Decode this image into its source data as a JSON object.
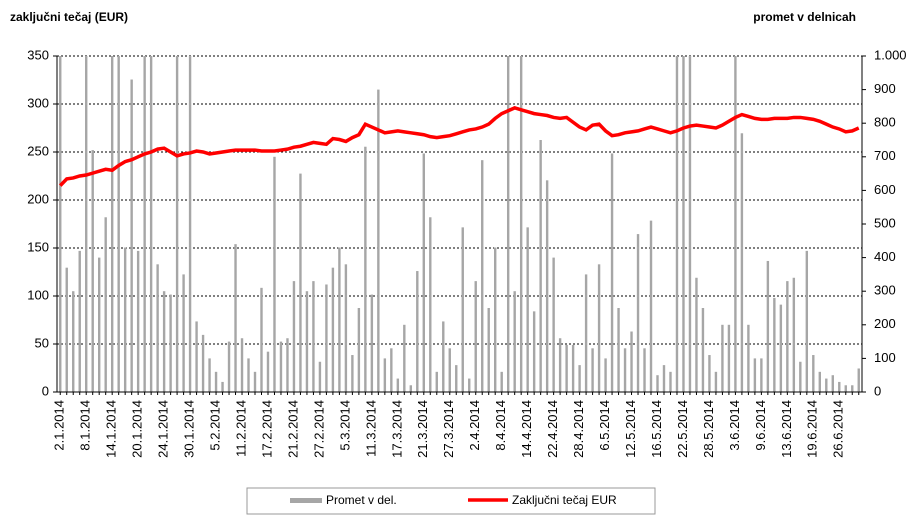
{
  "chart_data": {
    "type": "bar_line",
    "y_label": "zaključni tečaj (EUR)",
    "y2_label": "promet v delnicah",
    "categories": [
      "2.1.2014",
      null,
      null,
      null,
      "8.1.2014",
      null,
      null,
      null,
      "14.1.2014",
      null,
      null,
      null,
      "20.1.2014",
      null,
      null,
      null,
      "24.1.2014",
      null,
      null,
      null,
      "30.1.2014",
      null,
      null,
      null,
      "5.2.2014",
      null,
      null,
      null,
      "11.2.2014",
      null,
      null,
      null,
      "17.2.2014",
      null,
      null,
      null,
      "21.2.2014",
      null,
      null,
      null,
      "27.2.2014",
      null,
      null,
      null,
      "5.3.2014",
      null,
      null,
      null,
      "11.3.2014",
      null,
      null,
      null,
      "17.3.2014",
      null,
      null,
      null,
      "21.3.2014",
      null,
      null,
      null,
      "27.3.2014",
      null,
      null,
      null,
      "2.4.2014",
      null,
      null,
      null,
      "8.4.2014",
      null,
      null,
      null,
      "14.4.2014",
      null,
      null,
      null,
      "22.4.2014",
      null,
      null,
      null,
      "28.4.2014",
      null,
      null,
      null,
      "6.5.2014",
      null,
      null,
      null,
      "12.5.2014",
      null,
      null,
      null,
      "16.5.2014",
      null,
      null,
      null,
      "22.5.2014",
      null,
      null,
      null,
      "28.5.2014",
      null,
      null,
      null,
      "3.6.2014",
      null,
      null,
      null,
      "9.6.2014",
      null,
      null,
      null,
      "13.6.2014",
      null,
      null,
      null,
      "19.6.2014",
      null,
      null,
      null,
      "26.6.2014",
      null,
      null,
      null
    ],
    "series": [
      {
        "name": "Promet v del.",
        "kind": "bar",
        "axis": "y2",
        "color": "#a6a6a6",
        "values": [
          1000,
          370,
          300,
          420,
          1000,
          720,
          400,
          520,
          1000,
          1000,
          430,
          930,
          420,
          1000,
          1000,
          380,
          300,
          290,
          1000,
          350,
          1000,
          210,
          170,
          100,
          60,
          30,
          150,
          440,
          160,
          100,
          60,
          310,
          120,
          700,
          150,
          160,
          330,
          650,
          300,
          330,
          90,
          320,
          370,
          430,
          380,
          110,
          250,
          730,
          290,
          900,
          100,
          130,
          40,
          200,
          20,
          360,
          710,
          520,
          60,
          210,
          130,
          80,
          490,
          40,
          330,
          690,
          250,
          430,
          60,
          1000,
          300,
          1000,
          490,
          240,
          750,
          630,
          400,
          160,
          140,
          140,
          80,
          350,
          130,
          380,
          100,
          710,
          250,
          130,
          180,
          470,
          130,
          510,
          50,
          80,
          60,
          1000,
          1000,
          1000,
          340,
          250,
          110,
          60,
          200,
          200,
          1000,
          770,
          200,
          100,
          100,
          390,
          280,
          260,
          330,
          340,
          90,
          420,
          110,
          60,
          40,
          50,
          30,
          20,
          20,
          70
        ]
      },
      {
        "name": "Zaključni tečaj EUR",
        "kind": "line",
        "color": "#ff0000",
        "values": [
          215,
          222,
          223,
          225,
          226,
          228,
          230,
          232,
          231,
          236,
          240,
          242,
          245,
          248,
          250,
          253,
          254,
          250,
          246,
          248,
          249,
          251,
          250,
          248,
          249,
          250,
          251,
          252,
          252,
          252,
          252,
          251,
          251,
          251,
          252,
          253,
          255,
          256,
          258,
          260,
          259,
          258,
          264,
          263,
          261,
          265,
          268,
          279,
          276,
          273,
          270,
          271,
          272,
          271,
          270,
          269,
          268,
          266,
          265,
          266,
          267,
          269,
          271,
          273,
          274,
          276,
          279,
          285,
          290,
          293,
          296,
          294,
          292,
          290,
          289,
          288,
          286,
          285,
          286,
          281,
          276,
          273,
          278,
          279,
          272,
          267,
          268,
          270,
          271,
          272,
          274,
          276,
          274,
          272,
          270,
          272,
          275,
          277,
          278,
          277,
          276,
          275,
          278,
          282,
          286,
          289,
          287,
          285,
          284,
          284,
          285,
          285,
          285,
          286,
          286,
          285,
          284,
          282,
          279,
          276,
          274,
          271,
          272,
          275
        ]
      }
    ],
    "ylim": [
      0,
      350
    ],
    "yticks": [
      0,
      50,
      100,
      150,
      200,
      250,
      300,
      350
    ],
    "y2lim": [
      0,
      1000
    ],
    "y2ticks": [
      0,
      100,
      200,
      300,
      400,
      500,
      600,
      700,
      800,
      900,
      {
        "value": 1000,
        "label": "1.000"
      }
    ],
    "grid": true
  }
}
